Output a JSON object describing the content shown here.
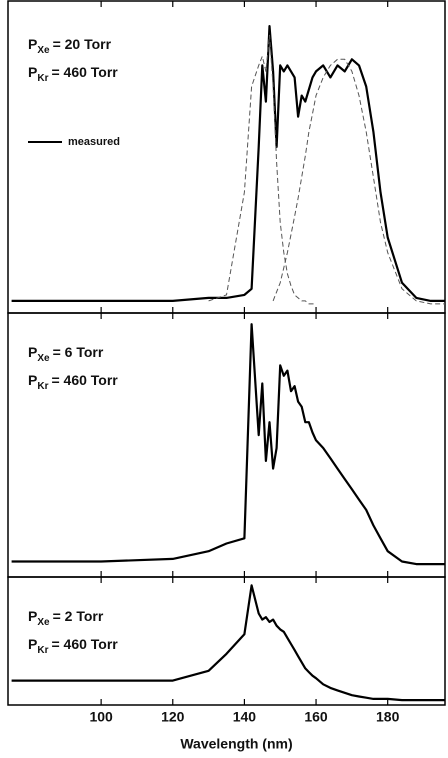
{
  "chart_data": [
    {
      "type": "line",
      "annotations": [
        {
          "symbol": "P",
          "subscript": "Xe",
          "text": "= 20 Torr"
        },
        {
          "symbol": "P",
          "subscript": "Kr",
          "text": "= 460 Torr"
        }
      ],
      "x": [
        75,
        100,
        120,
        130,
        135,
        140,
        142,
        144,
        145,
        146,
        147,
        148,
        149,
        150,
        151,
        152,
        153,
        154,
        155,
        156,
        157,
        158,
        159,
        160,
        162,
        164,
        166,
        168,
        170,
        172,
        174,
        176,
        178,
        180,
        184,
        188,
        192,
        196
      ],
      "xlim": [
        74,
        196
      ],
      "ylim": [
        0,
        1
      ],
      "series": [
        {
          "name": "measured",
          "color": "#000000",
          "dashed": false,
          "values": [
            0.04,
            0.04,
            0.04,
            0.05,
            0.05,
            0.06,
            0.08,
            0.55,
            0.82,
            0.7,
            0.95,
            0.8,
            0.55,
            0.82,
            0.8,
            0.82,
            0.8,
            0.78,
            0.65,
            0.72,
            0.7,
            0.74,
            0.78,
            0.8,
            0.82,
            0.78,
            0.82,
            0.8,
            0.84,
            0.82,
            0.75,
            0.6,
            0.4,
            0.25,
            0.1,
            0.05,
            0.04,
            0.04
          ]
        },
        {
          "color": "#555555",
          "dashed": true,
          "values": [
            null,
            null,
            null,
            0.04,
            0.06,
            0.4,
            0.75,
            0.82,
            0.85,
            0.8,
            0.92,
            0.75,
            0.5,
            0.3,
            0.2,
            0.13,
            0.09,
            0.06,
            0.05,
            0.04,
            0.04,
            0.03,
            0.03,
            0.03,
            null,
            null,
            null,
            null,
            null,
            null,
            null,
            null,
            null,
            null,
            null,
            null,
            null,
            null
          ]
        },
        {
          "color": "#555555",
          "dashed": true,
          "values": [
            null,
            null,
            null,
            null,
            null,
            null,
            null,
            null,
            null,
            null,
            null,
            0.04,
            0.07,
            0.1,
            0.15,
            0.2,
            0.26,
            0.32,
            0.38,
            0.45,
            0.52,
            0.6,
            0.66,
            0.72,
            0.78,
            0.82,
            0.84,
            0.84,
            0.8,
            0.72,
            0.6,
            0.45,
            0.3,
            0.2,
            0.08,
            0.04,
            0.03,
            0.03
          ]
        }
      ]
    },
    {
      "type": "line",
      "annotations": [
        {
          "symbol": "P",
          "subscript": "Xe",
          "text": "= 6 Torr"
        },
        {
          "symbol": "P",
          "subscript": "Kr",
          "text": "= 460 Torr"
        }
      ],
      "x": [
        75,
        100,
        120,
        130,
        135,
        140,
        142,
        144,
        145,
        146,
        147,
        148,
        149,
        150,
        151,
        152,
        153,
        154,
        155,
        156,
        157,
        158,
        159,
        160,
        162,
        164,
        166,
        168,
        170,
        172,
        174,
        176,
        178,
        180,
        184,
        188,
        192,
        196
      ],
      "xlim": [
        74,
        196
      ],
      "ylim": [
        0,
        1
      ],
      "series": [
        {
          "color": "#000000",
          "dashed": false,
          "values": [
            0.06,
            0.06,
            0.07,
            0.1,
            0.13,
            0.15,
            0.98,
            0.55,
            0.75,
            0.45,
            0.6,
            0.42,
            0.5,
            0.82,
            0.78,
            0.8,
            0.72,
            0.74,
            0.68,
            0.66,
            0.6,
            0.6,
            0.56,
            0.53,
            0.5,
            0.46,
            0.42,
            0.38,
            0.34,
            0.3,
            0.26,
            0.2,
            0.15,
            0.1,
            0.06,
            0.05,
            0.05,
            0.05
          ]
        }
      ]
    },
    {
      "type": "line",
      "annotations": [
        {
          "symbol": "P",
          "subscript": "Xe",
          "text": "= 2 Torr"
        },
        {
          "symbol": "P",
          "subscript": "Kr",
          "text": "= 460 Torr"
        }
      ],
      "x": [
        75,
        100,
        120,
        130,
        135,
        140,
        142,
        144,
        145,
        146,
        147,
        148,
        149,
        150,
        151,
        152,
        153,
        154,
        155,
        156,
        157,
        158,
        159,
        160,
        162,
        164,
        166,
        168,
        170,
        172,
        174,
        176,
        178,
        180,
        184,
        188,
        192,
        196
      ],
      "xlim": [
        74,
        196
      ],
      "ylim": [
        0,
        1
      ],
      "x_label": "Wavelength (nm)",
      "xticks": [
        100,
        120,
        140,
        160,
        180
      ],
      "series": [
        {
          "color": "#000000",
          "dashed": false,
          "values": [
            0.2,
            0.2,
            0.2,
            0.28,
            0.42,
            0.58,
            0.98,
            0.75,
            0.7,
            0.72,
            0.68,
            0.7,
            0.65,
            0.62,
            0.6,
            0.55,
            0.5,
            0.45,
            0.4,
            0.35,
            0.3,
            0.27,
            0.24,
            0.22,
            0.17,
            0.14,
            0.12,
            0.1,
            0.08,
            0.07,
            0.06,
            0.05,
            0.05,
            0.05,
            0.04,
            0.04,
            0.04,
            0.04
          ]
        }
      ]
    }
  ]
}
